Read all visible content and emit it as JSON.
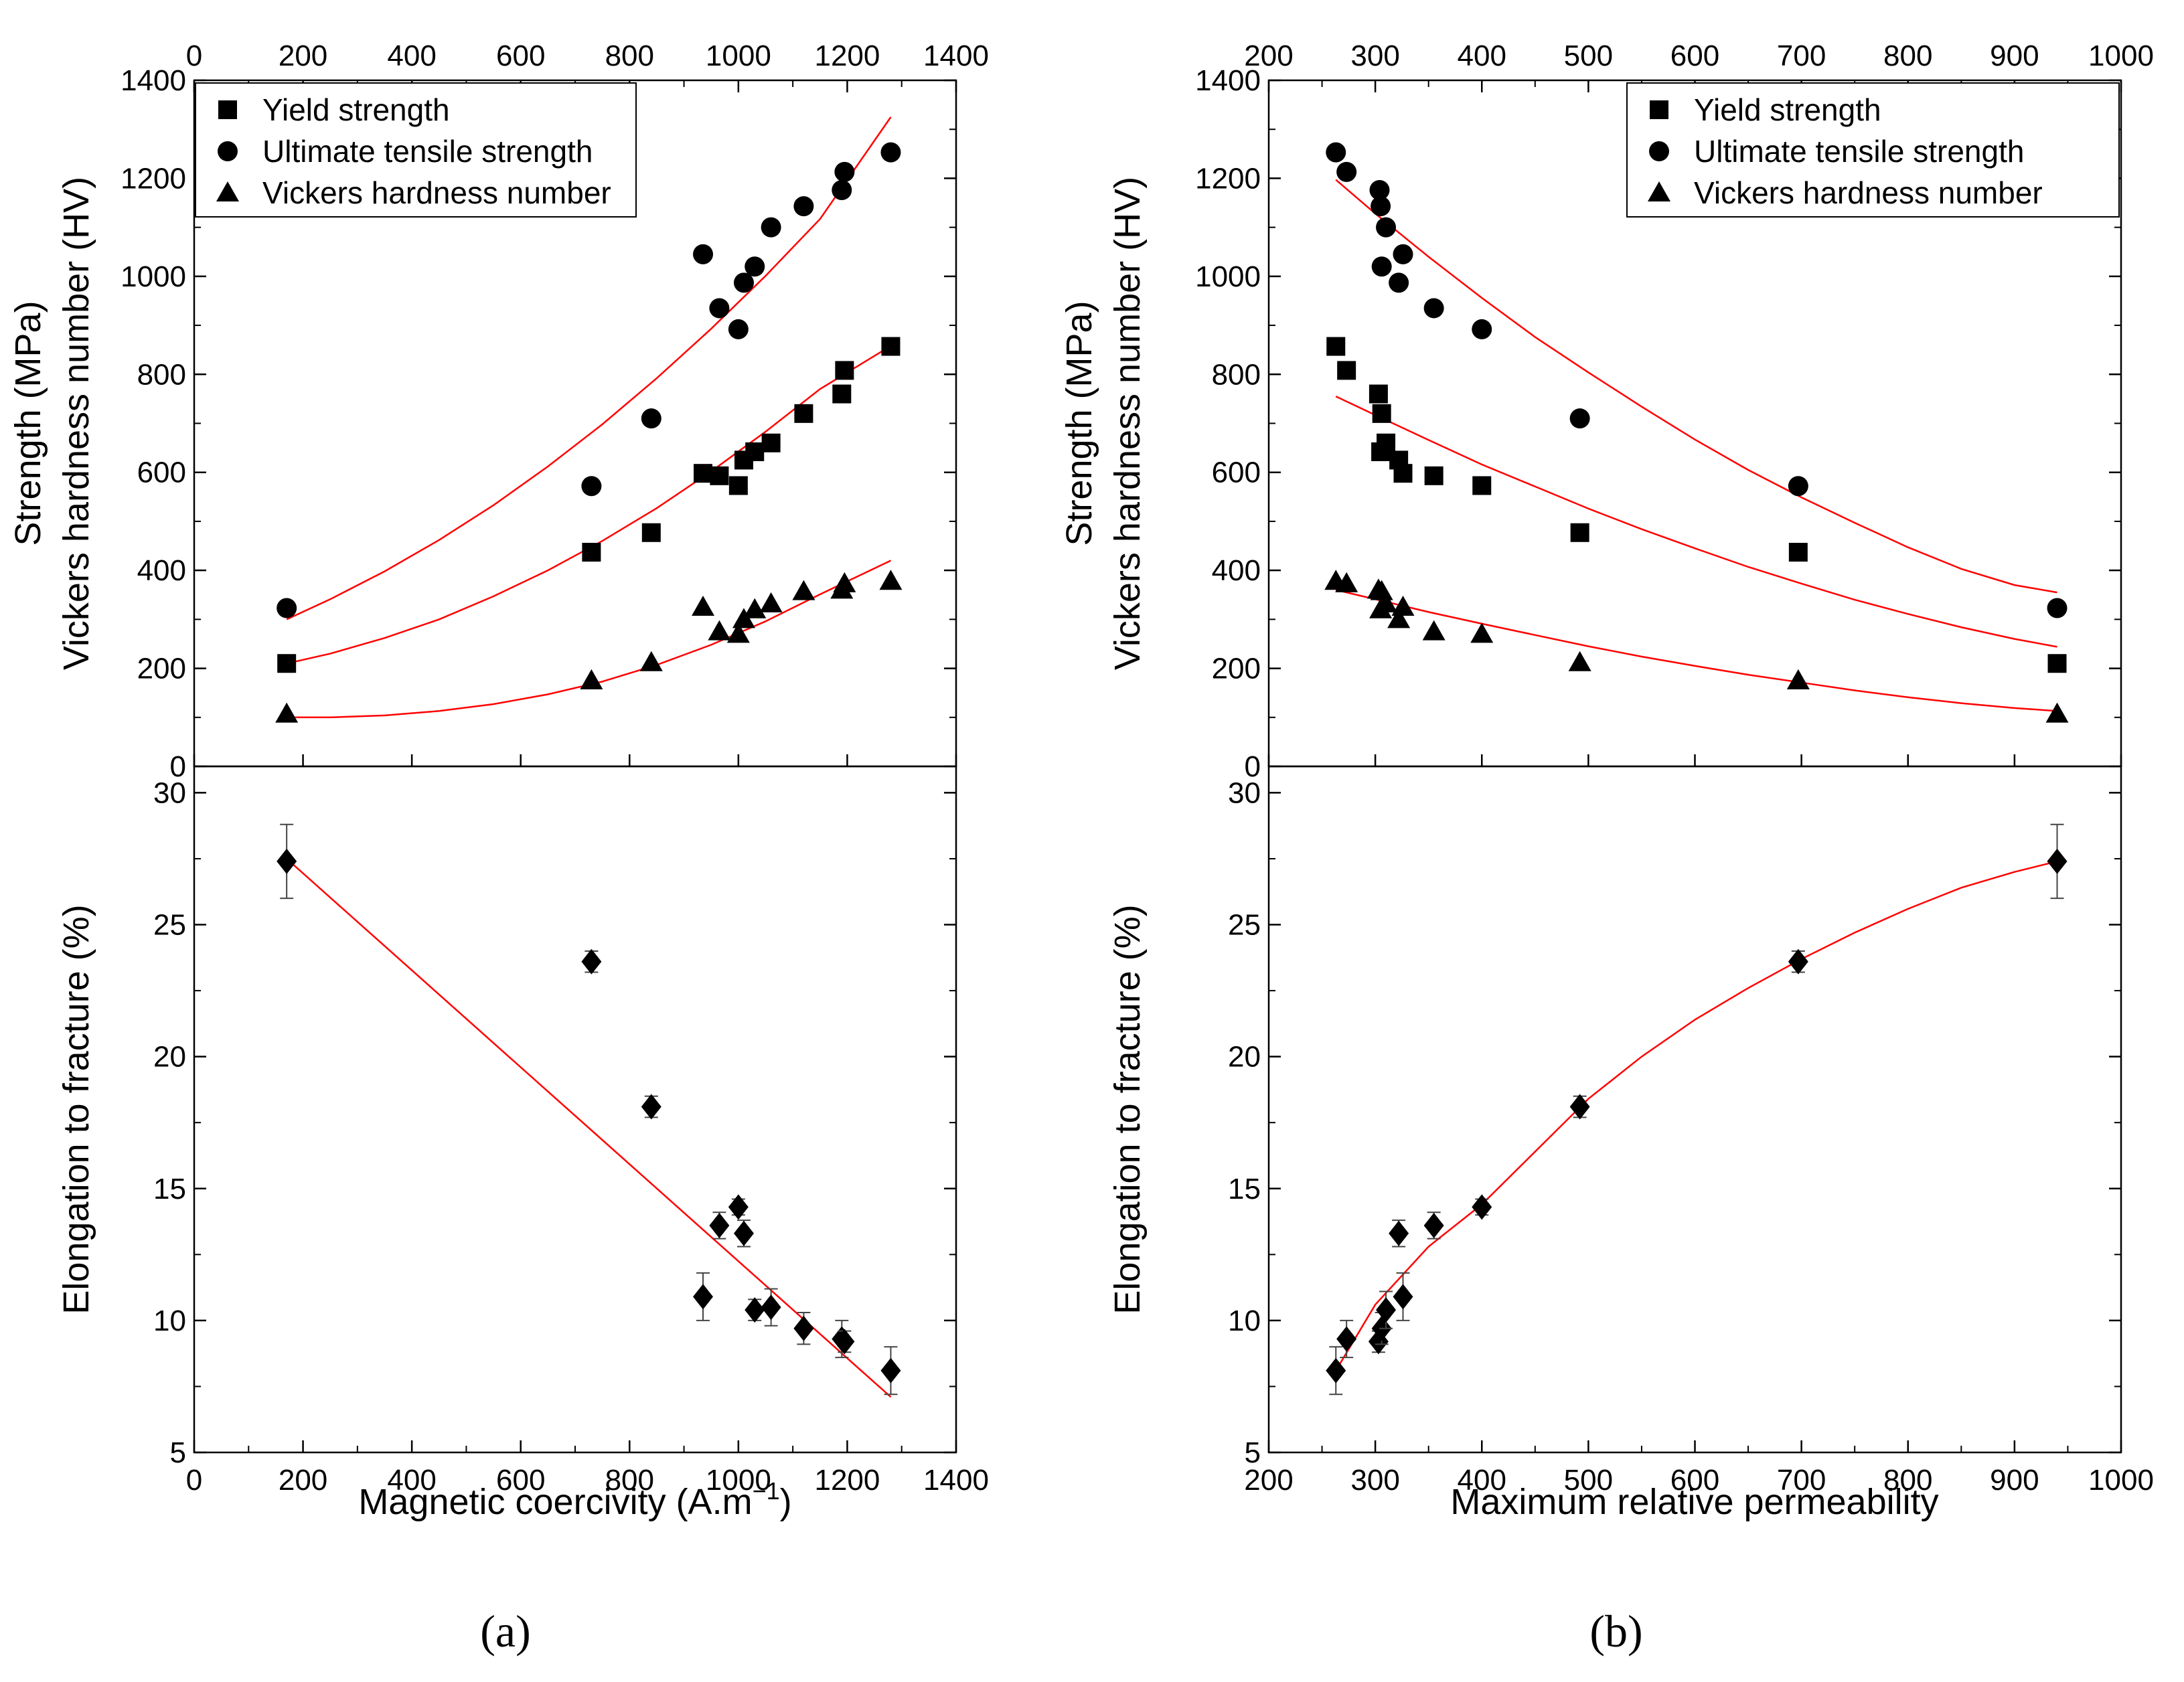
{
  "figure": {
    "panel_a_label": "(a)",
    "panel_b_label": "(b)",
    "legend": {
      "yield": "Yield strength",
      "uts": "Ultimate tensile strength",
      "hv": "Vickers hardness number"
    },
    "colors": {
      "fit": "#ff0000",
      "marker": "#000000",
      "frame": "#000000"
    }
  },
  "chart_data": [
    {
      "id": "a",
      "type": "scatter",
      "xlabel": "Magnetic coercivity (A.m",
      "xlabel_superscript": "−1",
      "xlabel_close": ")",
      "xlim": [
        0,
        1400
      ],
      "xticks": [
        0,
        200,
        400,
        600,
        800,
        1000,
        1200,
        1400
      ],
      "top": {
        "ylabel_line1": "Strength (MPa)",
        "ylabel_line2": "Vickers hardness number (HV)",
        "ylim": [
          0,
          1400
        ],
        "yticks": [
          0,
          200,
          400,
          600,
          800,
          1000,
          1200,
          1400
        ],
        "series": [
          {
            "name": "Yield strength",
            "marker": "square",
            "x": [
              170,
              730,
              840,
              935,
              965,
              1000,
              1010,
              1030,
              1060,
              1120,
              1190,
              1195,
              1280
            ],
            "y": [
              210,
              437,
              477,
              598,
              593,
              573,
              625,
              642,
              660,
              720,
              760,
              808,
              857
            ],
            "fit": {
              "kind": "poly2",
              "x": [
                170,
                250,
                350,
                450,
                550,
                650,
                750,
                850,
                950,
                1050,
                1150,
                1280
              ],
              "y": [
                210,
                230,
                262,
                300,
                347,
                400,
                460,
                527,
                602,
                683,
                770,
                858
              ]
            }
          },
          {
            "name": "Ultimate tensile strength",
            "marker": "circle",
            "x": [
              170,
              730,
              840,
              935,
              965,
              1000,
              1010,
              1030,
              1060,
              1120,
              1190,
              1195,
              1280
            ],
            "y": [
              323,
              572,
              710,
              1045,
              935,
              892,
              987,
              1020,
              1100,
              1143,
              1176,
              1213,
              1253
            ],
            "fit": {
              "kind": "poly2",
              "x": [
                170,
                250,
                350,
                450,
                550,
                650,
                750,
                850,
                950,
                1050,
                1150,
                1280
              ],
              "y": [
                300,
                341,
                398,
                462,
                533,
                612,
                698,
                792,
                893,
                1001,
                1117,
                1325
              ]
            }
          },
          {
            "name": "Vickers hardness number",
            "marker": "triangle",
            "x": [
              170,
              730,
              840,
              935,
              965,
              1000,
              1010,
              1030,
              1060,
              1120,
              1190,
              1195,
              1280
            ],
            "y": [
              107,
              175,
              212,
              325,
              275,
              270,
              300,
              320,
              332,
              357,
              360,
              373,
              378
            ],
            "fit": {
              "kind": "poly2",
              "x": [
                170,
                250,
                350,
                450,
                550,
                650,
                750,
                850,
                950,
                1050,
                1150,
                1280
              ],
              "y": [
                100,
                100,
                104,
                113,
                127,
                147,
                173,
                207,
                248,
                296,
                351,
                420
              ]
            }
          }
        ]
      },
      "bottom": {
        "ylabel": "Elongation to fracture (%)",
        "ylim": [
          5,
          31
        ],
        "yticks": [
          5,
          10,
          15,
          20,
          25,
          30
        ],
        "series": [
          {
            "name": "Elongation to fracture",
            "marker": "diamond",
            "x": [
              170,
              730,
              840,
              935,
              965,
              1000,
              1010,
              1030,
              1060,
              1120,
              1190,
              1195,
              1280
            ],
            "y": [
              27.4,
              23.6,
              18.1,
              10.9,
              13.6,
              14.3,
              13.3,
              10.4,
              10.5,
              9.7,
              9.3,
              9.2,
              8.1
            ],
            "err": [
              1.4,
              0.4,
              0.4,
              0.9,
              0.5,
              0.3,
              0.5,
              0.4,
              0.7,
              0.6,
              0.7,
              0.4,
              0.9
            ],
            "fit": {
              "kind": "linear",
              "x": [
                170,
                1280
              ],
              "y": [
                27.5,
                7.1
              ]
            }
          }
        ]
      }
    },
    {
      "id": "b",
      "type": "scatter",
      "xlabel": "Maximum relative permeability",
      "xlim": [
        200,
        1000
      ],
      "xticks": [
        200,
        300,
        400,
        500,
        600,
        700,
        800,
        900,
        1000
      ],
      "top": {
        "ylabel_line1": "Strength (MPa)",
        "ylabel_line2": "Vickers hardness number (HV)",
        "ylim": [
          0,
          1400
        ],
        "yticks": [
          0,
          200,
          400,
          600,
          800,
          1000,
          1200,
          1400
        ],
        "series": [
          {
            "name": "Yield strength",
            "marker": "square",
            "x": [
              263,
              273,
              303,
              306,
              305,
              310,
              322,
              326,
              355,
              400,
              492,
              697,
              940
            ],
            "y": [
              857,
              808,
              760,
              720,
              642,
              660,
              625,
              598,
              593,
              573,
              477,
              437,
              210
            ],
            "fit": {
              "kind": "poly2",
              "x": [
                263,
                300,
                350,
                400,
                450,
                500,
                550,
                600,
                650,
                700,
                750,
                800,
                850,
                900,
                940
              ],
              "y": [
                755,
                717,
                666,
                616,
                571,
                526,
                484,
                445,
                407,
                373,
                340,
                311,
                284,
                260,
                244
              ]
            }
          },
          {
            "name": "Ultimate tensile strength",
            "marker": "circle",
            "x": [
              263,
              273,
              304,
              305,
              306,
              310,
              322,
              326,
              355,
              400,
              492,
              697,
              940
            ],
            "y": [
              1253,
              1213,
              1176,
              1143,
              1020,
              1100,
              987,
              1045,
              935,
              892,
              710,
              572,
              323
            ],
            "fit": {
              "kind": "poly2",
              "x": [
                263,
                300,
                350,
                400,
                450,
                500,
                550,
                600,
                650,
                700,
                750,
                800,
                850,
                900,
                940
              ],
              "y": [
                1197,
                1128,
                1040,
                956,
                876,
                804,
                734,
                667,
                605,
                549,
                497,
                447,
                403,
                370,
                355
              ]
            }
          },
          {
            "name": "Vickers hardness number",
            "marker": "triangle",
            "x": [
              263,
              273,
              303,
              306,
              305,
              310,
              322,
              326,
              355,
              400,
              492,
              697,
              940
            ],
            "y": [
              378,
              373,
              360,
              357,
              320,
              332,
              300,
              325,
              275,
              270,
              212,
              175,
              107
            ],
            "fit": {
              "kind": "poly2",
              "x": [
                263,
                300,
                350,
                400,
                450,
                500,
                550,
                600,
                650,
                700,
                750,
                800,
                850,
                900,
                940
              ],
              "y": [
                360,
                341,
                315,
                291,
                268,
                245,
                224,
                205,
                187,
                171,
                155,
                141,
                129,
                119,
                113
              ]
            }
          }
        ]
      },
      "bottom": {
        "ylabel": "Elongation to fracture (%)",
        "ylim": [
          5,
          31
        ],
        "yticks": [
          5,
          10,
          15,
          20,
          25,
          30
        ],
        "series": [
          {
            "name": "Elongation to fracture",
            "marker": "diamond",
            "x": [
              263,
              273,
              303,
              306,
              310,
              322,
              326,
              355,
              400,
              492,
              697,
              940
            ],
            "y": [
              8.1,
              9.3,
              9.2,
              9.7,
              10.4,
              13.3,
              10.9,
              13.6,
              14.3,
              18.1,
              23.6,
              27.4
            ],
            "err": [
              0.9,
              0.7,
              0.4,
              0.6,
              0.7,
              0.5,
              0.9,
              0.5,
              0.3,
              0.4,
              0.4,
              1.4
            ],
            "fit": {
              "kind": "poly2",
              "x": [
                263,
                300,
                350,
                400,
                450,
                500,
                550,
                600,
                650,
                700,
                750,
                800,
                850,
                900,
                940
              ],
              "y": [
                8.1,
                10.6,
                12.8,
                14.4,
                16.4,
                18.4,
                20.0,
                21.4,
                22.6,
                23.7,
                24.7,
                25.6,
                26.4,
                27.0,
                27.4
              ]
            }
          }
        ]
      }
    }
  ]
}
